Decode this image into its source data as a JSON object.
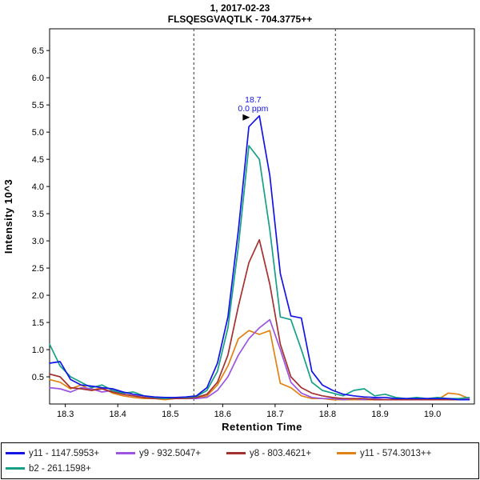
{
  "header": {
    "line1": "1, 2017-02-23",
    "line2": "FLSQESGVAQTLK - 704.3775++"
  },
  "chart_data": {
    "type": "line",
    "title": "1, 2017-02-23 — FLSQESGVAQTLK - 704.3775++",
    "xlabel": "Retention Time",
    "ylabel": "Intensity 10^3",
    "xlim": [
      18.27,
      19.08
    ],
    "ylim": [
      0,
      6.9
    ],
    "x_ticks": [
      18.3,
      18.4,
      18.5,
      18.6,
      18.7,
      18.8,
      18.9,
      19.0
    ],
    "y_ticks": [
      0.5,
      1.0,
      1.5,
      2.0,
      2.5,
      3.0,
      3.5,
      4.0,
      4.5,
      5.0,
      5.5,
      6.0,
      6.5
    ],
    "boundaries": [
      18.545,
      18.815
    ],
    "annotation": {
      "x": 18.655,
      "y": 5.3,
      "line1": "18.7",
      "line2": "0.0 ppm",
      "color": "#1414E6"
    },
    "x": [
      18.27,
      18.29,
      18.31,
      18.33,
      18.35,
      18.37,
      18.39,
      18.41,
      18.43,
      18.45,
      18.47,
      18.49,
      18.51,
      18.53,
      18.55,
      18.57,
      18.59,
      18.61,
      18.63,
      18.65,
      18.67,
      18.69,
      18.71,
      18.73,
      18.75,
      18.77,
      18.79,
      18.81,
      18.83,
      18.85,
      18.87,
      18.89,
      18.91,
      18.93,
      18.95,
      18.97,
      18.99,
      19.01,
      19.03,
      19.05,
      19.07
    ],
    "series": [
      {
        "name": "y11 - 1147.5953+",
        "color": "#1414E6",
        "z": 5,
        "values": [
          0.75,
          0.78,
          0.45,
          0.35,
          0.33,
          0.3,
          0.28,
          0.22,
          0.18,
          0.15,
          0.13,
          0.12,
          0.12,
          0.13,
          0.15,
          0.3,
          0.75,
          1.6,
          3.2,
          5.1,
          5.3,
          4.2,
          2.4,
          1.62,
          1.58,
          0.6,
          0.35,
          0.25,
          0.18,
          0.15,
          0.13,
          0.12,
          0.12,
          0.1,
          0.1,
          0.1,
          0.1,
          0.1,
          0.1,
          0.08,
          0.08
        ]
      },
      {
        "name": "y9 - 932.5047+",
        "color": "#9B55E0",
        "z": 2,
        "values": [
          0.3,
          0.28,
          0.22,
          0.3,
          0.28,
          0.22,
          0.25,
          0.18,
          0.15,
          0.12,
          0.1,
          0.1,
          0.1,
          0.1,
          0.1,
          0.12,
          0.25,
          0.5,
          0.9,
          1.2,
          1.4,
          1.55,
          1.0,
          0.4,
          0.2,
          0.12,
          0.1,
          0.1,
          0.08,
          0.1,
          0.08,
          0.1,
          0.08,
          0.08,
          0.1,
          0.08,
          0.08,
          0.1,
          0.08,
          0.08,
          0.1
        ]
      },
      {
        "name": "y8 - 803.4621+",
        "color": "#A53030",
        "z": 3,
        "values": [
          0.55,
          0.5,
          0.3,
          0.28,
          0.25,
          0.28,
          0.22,
          0.18,
          0.15,
          0.12,
          0.1,
          0.1,
          0.1,
          0.1,
          0.12,
          0.18,
          0.4,
          0.9,
          1.8,
          2.6,
          3.02,
          2.2,
          1.1,
          0.5,
          0.3,
          0.2,
          0.15,
          0.12,
          0.1,
          0.1,
          0.1,
          0.08,
          0.08,
          0.08,
          0.08,
          0.08,
          0.08,
          0.08,
          0.08,
          0.08,
          0.08
        ]
      },
      {
        "name": "y11 - 574.3013++",
        "color": "#E08214",
        "z": 1,
        "values": [
          0.45,
          0.4,
          0.28,
          0.35,
          0.25,
          0.3,
          0.2,
          0.15,
          0.12,
          0.1,
          0.1,
          0.08,
          0.1,
          0.1,
          0.1,
          0.15,
          0.35,
          0.7,
          1.2,
          1.35,
          1.28,
          1.35,
          0.38,
          0.3,
          0.15,
          0.1,
          0.1,
          0.08,
          0.08,
          0.08,
          0.08,
          0.08,
          0.08,
          0.08,
          0.08,
          0.08,
          0.08,
          0.08,
          0.2,
          0.18,
          0.1
        ]
      },
      {
        "name": "b2 - 261.1598+",
        "color": "#16A085",
        "z": 4,
        "values": [
          1.1,
          0.7,
          0.5,
          0.4,
          0.3,
          0.35,
          0.25,
          0.2,
          0.22,
          0.15,
          0.12,
          0.1,
          0.12,
          0.12,
          0.14,
          0.25,
          0.6,
          1.4,
          2.9,
          4.75,
          4.5,
          3.2,
          1.6,
          1.55,
          1.0,
          0.4,
          0.25,
          0.2,
          0.15,
          0.25,
          0.28,
          0.15,
          0.18,
          0.12,
          0.1,
          0.12,
          0.1,
          0.12,
          0.1,
          0.1,
          0.12
        ]
      }
    ],
    "legend_position": "bottom",
    "grid": false
  }
}
